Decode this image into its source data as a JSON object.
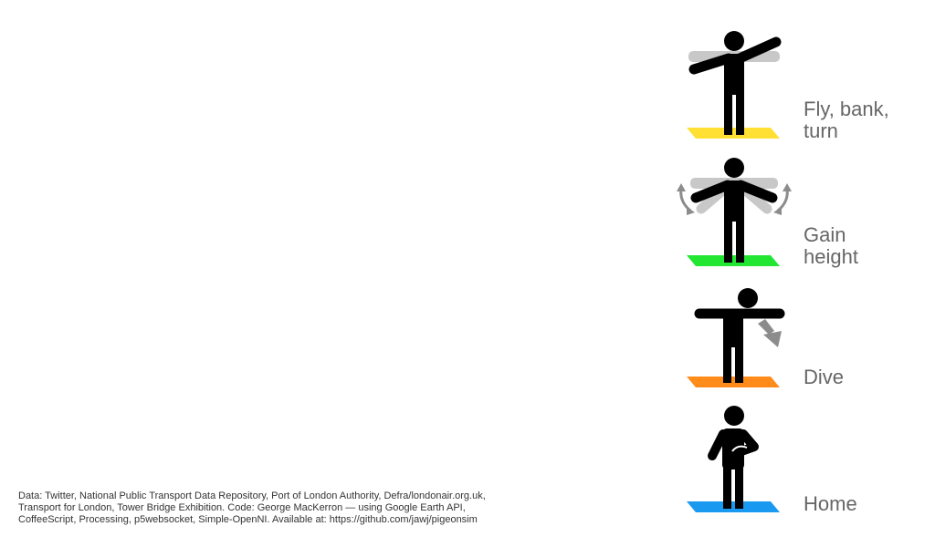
{
  "colors": {
    "figure": "#000000",
    "ghost": "#c8c8c8",
    "arrow": "#8c8c8c",
    "label": "#666666",
    "credits": "#333333"
  },
  "gestures": [
    {
      "id": "fly",
      "icon": "arms-outstretched-tilted-icon",
      "mat_color": "#ffe033",
      "label_lines": [
        "Fly, bank,",
        "turn"
      ]
    },
    {
      "id": "gain",
      "icon": "arms-flapping-icon",
      "mat_color": "#22e632",
      "label_lines": [
        "Gain",
        "height"
      ]
    },
    {
      "id": "dive",
      "icon": "arms-forward-dive-icon",
      "mat_color": "#ff8c1a",
      "label_lines": [
        "Dive"
      ]
    },
    {
      "id": "home",
      "icon": "hand-on-chest-icon",
      "mat_color": "#1a99f0",
      "label_lines": [
        "Home"
      ]
    }
  ],
  "credits": {
    "line1": "Data: Twitter, National Public Transport Data Repository, Port of London Authority, Defra/londonair.org.uk,",
    "line2": "Transport for London, Tower Bridge Exhibition. Code: George MacKerron — using Google Earth API,",
    "line3": "CoffeeScript, Processing, p5websocket, Simple-OpenNI. Available at: https://github.com/jawj/pigeonsim"
  }
}
